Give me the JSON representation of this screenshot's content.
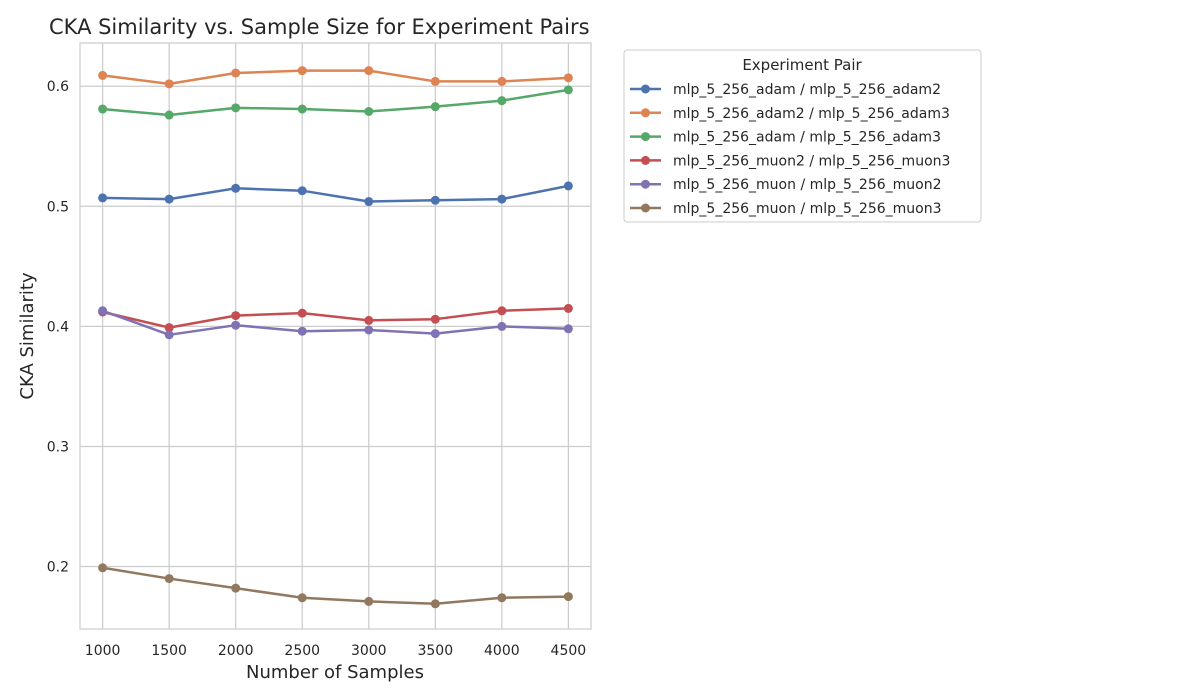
{
  "chart_data": {
    "type": "line",
    "title": "CKA Similarity vs. Sample Size for Experiment Pairs",
    "xlabel": "Number of Samples",
    "ylabel": "CKA Similarity",
    "x": [
      1000,
      1500,
      2000,
      2500,
      3000,
      3500,
      4000,
      4500
    ],
    "x_ticks": [
      1000,
      1500,
      2000,
      2500,
      3000,
      3500,
      4000,
      4500
    ],
    "y_ticks": [
      0.2,
      0.3,
      0.4,
      0.5,
      0.6
    ],
    "xlim": [
      830,
      4670
    ],
    "ylim": [
      0.148,
      0.636
    ],
    "grid": true,
    "legend": {
      "title": "Experiment Pair",
      "placement": "outside-upper-right"
    },
    "series": [
      {
        "name": "mlp_5_256_adam / mlp_5_256_adam2",
        "color": "#4c72b0",
        "values": [
          0.507,
          0.506,
          0.515,
          0.513,
          0.504,
          0.505,
          0.506,
          0.517
        ]
      },
      {
        "name": "mlp_5_256_adam2 / mlp_5_256_adam3",
        "color": "#dd8452",
        "values": [
          0.609,
          0.602,
          0.611,
          0.613,
          0.613,
          0.604,
          0.604,
          0.607
        ]
      },
      {
        "name": "mlp_5_256_adam / mlp_5_256_adam3",
        "color": "#55a868",
        "values": [
          0.581,
          0.576,
          0.582,
          0.581,
          0.579,
          0.583,
          0.588,
          0.597
        ]
      },
      {
        "name": "mlp_5_256_muon2 / mlp_5_256_muon3",
        "color": "#c44e52",
        "values": [
          0.412,
          0.399,
          0.409,
          0.411,
          0.405,
          0.406,
          0.413,
          0.415
        ]
      },
      {
        "name": "mlp_5_256_muon / mlp_5_256_muon2",
        "color": "#8172b3",
        "values": [
          0.413,
          0.393,
          0.401,
          0.396,
          0.397,
          0.394,
          0.4,
          0.398
        ]
      },
      {
        "name": "mlp_5_256_muon / mlp_5_256_muon3",
        "color": "#937860",
        "values": [
          0.199,
          0.19,
          0.182,
          0.174,
          0.171,
          0.169,
          0.174,
          0.175
        ]
      }
    ]
  }
}
